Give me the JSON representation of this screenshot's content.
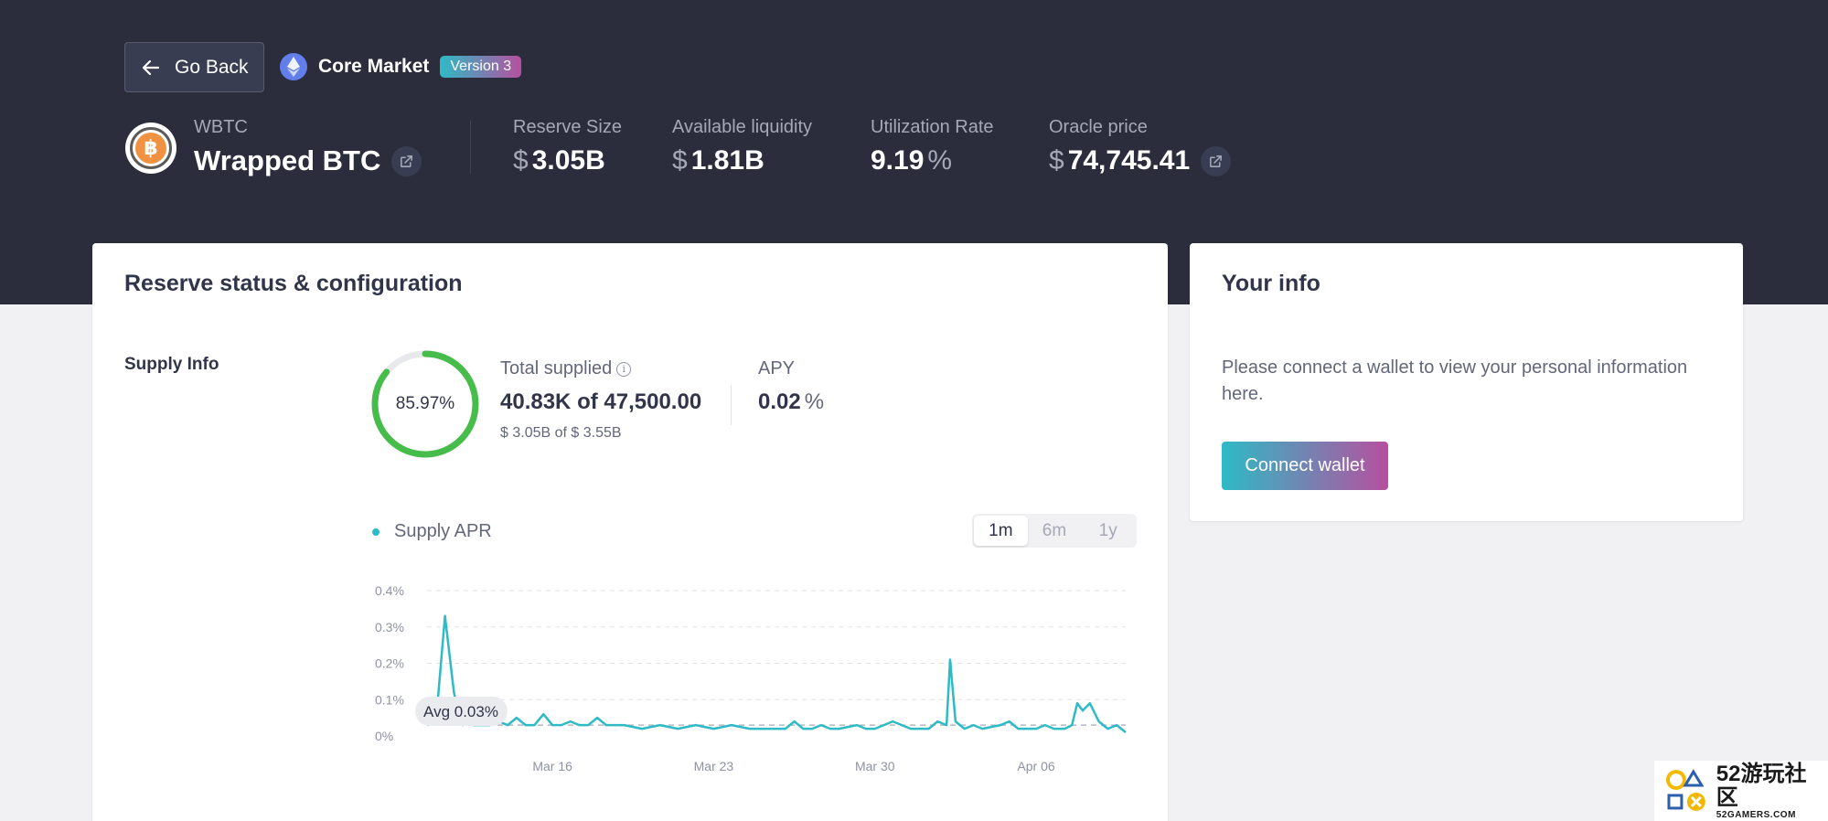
{
  "header": {
    "back_label": "Go Back",
    "market_name": "Core Market",
    "version_badge": "Version 3"
  },
  "asset": {
    "symbol": "WBTC",
    "name": "Wrapped BTC",
    "icon_glyph": "฿"
  },
  "stats": {
    "reserve_size": {
      "label": "Reserve Size",
      "unit": "$",
      "value": "3.05B"
    },
    "available_liquidity": {
      "label": "Available liquidity",
      "unit": "$",
      "value": "1.81B"
    },
    "utilization_rate": {
      "label": "Utilization Rate",
      "value": "9.19",
      "unit": "%"
    },
    "oracle_price": {
      "label": "Oracle price",
      "unit": "$",
      "value": "74,745.41"
    }
  },
  "reserve": {
    "title": "Reserve status & configuration",
    "supply_info_label": "Supply Info",
    "supply_cap_percent": "85.97%",
    "supply_cap_fraction": 0.8597,
    "total_supplied_label": "Total supplied",
    "total_supplied_amount": "40.83K",
    "of_word": "of",
    "total_supplied_cap": "47,500.00",
    "total_supplied_usd": "$ 3.05B of $ 3.55B",
    "apy_label": "APY",
    "apy_value": "0.02",
    "apy_unit": "%",
    "legend_label": "Supply APR",
    "range_options": [
      "1m",
      "6m",
      "1y"
    ],
    "range_selected": "1m",
    "avg_label": "Avg 0.03%"
  },
  "chart_data": {
    "type": "line",
    "title": "",
    "xlabel": "",
    "ylabel": "",
    "series": [
      {
        "name": "Supply APR",
        "color": "#2ebac6",
        "x": [
          0,
          0.5,
          1,
          1.5,
          1.8,
          2,
          2.3,
          2.6,
          3,
          3.5,
          4,
          4.5,
          5,
          5.5,
          6,
          6.5,
          7,
          7.5,
          8,
          8.5,
          9,
          9.5,
          10,
          11,
          12,
          13,
          14,
          15,
          16,
          17,
          18,
          19,
          20,
          20.5,
          21,
          21.5,
          22,
          22.5,
          23,
          24,
          24.5,
          25,
          26,
          27,
          28,
          28.5,
          29,
          29.2,
          29.5,
          30,
          30.5,
          31,
          32,
          32.5,
          33,
          34,
          34.5,
          35,
          35.3,
          35.6,
          36,
          36.3,
          36.6,
          37,
          37.5,
          38,
          38.5,
          39
        ],
        "y": [
          0.03,
          0.04,
          0.33,
          0.12,
          0.05,
          0.03,
          0.05,
          0.03,
          0.03,
          0.03,
          0.04,
          0.03,
          0.05,
          0.03,
          0.03,
          0.06,
          0.03,
          0.03,
          0.04,
          0.03,
          0.03,
          0.05,
          0.03,
          0.03,
          0.02,
          0.03,
          0.02,
          0.03,
          0.02,
          0.03,
          0.02,
          0.02,
          0.02,
          0.04,
          0.02,
          0.02,
          0.03,
          0.02,
          0.02,
          0.03,
          0.02,
          0.02,
          0.04,
          0.02,
          0.02,
          0.04,
          0.03,
          0.21,
          0.04,
          0.02,
          0.03,
          0.02,
          0.03,
          0.04,
          0.02,
          0.02,
          0.03,
          0.02,
          0.02,
          0.02,
          0.03,
          0.09,
          0.07,
          0.09,
          0.04,
          0.02,
          0.03,
          0.01
        ]
      }
    ],
    "average": 0.03,
    "ylim": [
      0,
      0.4
    ],
    "yticks": [
      "0%",
      "0.1%",
      "0.2%",
      "0.3%",
      "0.4%"
    ],
    "xticks": [
      {
        "x": 7,
        "label": "Mar 16"
      },
      {
        "x": 16,
        "label": "Mar 23"
      },
      {
        "x": 25,
        "label": "Mar 30"
      },
      {
        "x": 34,
        "label": "Apr 06"
      }
    ],
    "xlim": [
      0,
      39
    ],
    "grid": true
  },
  "your_info": {
    "title": "Your info",
    "message": "Please connect a wallet to view your personal information here.",
    "connect_label": "Connect wallet"
  },
  "watermark": {
    "big": "52游玩社区",
    "small": "52GAMERS.COM"
  }
}
